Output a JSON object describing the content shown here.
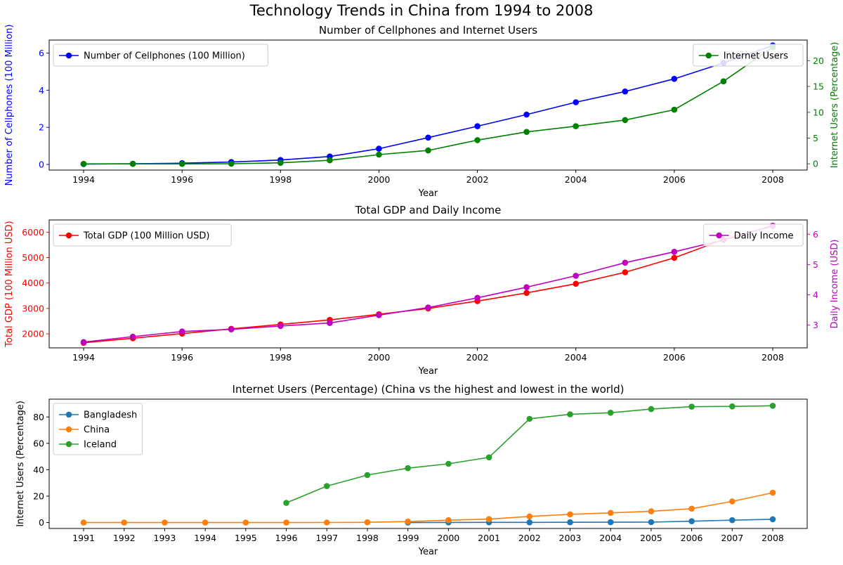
{
  "figure": {
    "title": "Technology Trends in China from 1994 to 2008"
  },
  "chart_data": [
    {
      "type": "line",
      "title": "Number of Cellphones and Internet Users",
      "xlabel": "Year",
      "ylabel_left": "Number of Cellphones (100 Million)",
      "ylabel_right": "Internet Users (Percentage)",
      "x": [
        1994,
        1995,
        1996,
        1997,
        1998,
        1999,
        2000,
        2001,
        2002,
        2003,
        2004,
        2005,
        2006,
        2007,
        2008
      ],
      "xticks": [
        "1994",
        "1996",
        "1998",
        "2000",
        "2002",
        "2004",
        "2006",
        "2008"
      ],
      "xlim": [
        1993.3,
        2008.7
      ],
      "left_ticks": [
        "0",
        "2",
        "4",
        "6"
      ],
      "ylim_left": [
        -0.3,
        6.7
      ],
      "right_ticks": [
        "0",
        "5",
        "10",
        "15",
        "20"
      ],
      "ylim_right": [
        -1.2,
        24.0
      ],
      "grid": false,
      "series": [
        {
          "name": "Number of Cellphones (100 Million)",
          "axis": "left",
          "color": "#0000ff",
          "values": [
            0.02,
            0.04,
            0.07,
            0.13,
            0.24,
            0.43,
            0.85,
            1.45,
            2.06,
            2.69,
            3.35,
            3.93,
            4.61,
            5.47,
            6.41
          ],
          "legend_pos": "upper left"
        },
        {
          "name": "Internet Users",
          "axis": "right",
          "color": "#008000",
          "values": [
            0.0,
            0.0,
            0.0,
            0.03,
            0.2,
            0.7,
            1.8,
            2.6,
            4.6,
            6.2,
            7.3,
            8.5,
            10.5,
            16.0,
            22.6
          ],
          "legend_pos": "upper right"
        }
      ]
    },
    {
      "type": "line",
      "title": "Total GDP and Daily Income",
      "xlabel": "Year",
      "ylabel_left": "Total GDP (100 Million USD)",
      "ylabel_right": "Daily Income (USD)",
      "x": [
        1994,
        1995,
        1996,
        1997,
        1998,
        1999,
        2000,
        2001,
        2002,
        2003,
        2004,
        2005,
        2006,
        2007,
        2008
      ],
      "xticks": [
        "1994",
        "1996",
        "1998",
        "2000",
        "2002",
        "2004",
        "2006",
        "2008"
      ],
      "xlim": [
        1993.3,
        2008.7
      ],
      "left_ticks": [
        "2000",
        "3000",
        "4000",
        "5000",
        "6000"
      ],
      "ylim_left": [
        1450,
        6480
      ],
      "right_ticks": [
        "3",
        "4",
        "5",
        "6"
      ],
      "ylim_right": [
        2.25,
        6.47
      ],
      "grid": false,
      "series": [
        {
          "name": "Total GDP (100 Million USD)",
          "axis": "left",
          "color": "#ff0000",
          "values": [
            1650,
            1830,
            2010,
            2200,
            2370,
            2550,
            2770,
            3000,
            3290,
            3610,
            3970,
            4420,
            4990,
            5710,
            6240
          ],
          "legend_pos": "upper left"
        },
        {
          "name": "Daily Income",
          "axis": "right",
          "color": "#bf00bf",
          "values": [
            2.44,
            2.62,
            2.79,
            2.86,
            2.97,
            3.07,
            3.33,
            3.58,
            3.9,
            4.25,
            4.63,
            5.06,
            5.42,
            5.81,
            6.28
          ],
          "legend_pos": "upper right"
        }
      ]
    },
    {
      "type": "line",
      "title": "Internet Users (Percentage) (China vs the highest and lowest in the world)",
      "xlabel": "Year",
      "ylabel_left": "Internet Users (Percentage)",
      "x": [
        1991,
        1992,
        1993,
        1994,
        1995,
        1996,
        1997,
        1998,
        1999,
        2000,
        2001,
        2002,
        2003,
        2004,
        2005,
        2006,
        2007,
        2008
      ],
      "xticks": [
        "1991",
        "1992",
        "1993",
        "1994",
        "1995",
        "1996",
        "1997",
        "1998",
        "1999",
        "2000",
        "2001",
        "2002",
        "2003",
        "2004",
        "2005",
        "2006",
        "2007",
        "2008"
      ],
      "xlim": [
        1990.15,
        2008.85
      ],
      "left_ticks": [
        "0",
        "20",
        "40",
        "60",
        "80"
      ],
      "ylim_left": [
        -4.5,
        93.5
      ],
      "grid": false,
      "series": [
        {
          "name": "Bangladesh",
          "axis": "left",
          "color": "#1f77b4",
          "x": [
            1999,
            2000,
            2001,
            2002,
            2003,
            2004,
            2005,
            2006,
            2007,
            2008
          ],
          "values": [
            0.0,
            0.1,
            0.15,
            0.15,
            0.2,
            0.25,
            0.3,
            1.0,
            1.8,
            2.5
          ]
        },
        {
          "name": "China",
          "axis": "left",
          "color": "#ff7f0e",
          "x": [
            1991,
            1992,
            1993,
            1994,
            1995,
            1996,
            1997,
            1998,
            1999,
            2000,
            2001,
            2002,
            2003,
            2004,
            2005,
            2006,
            2007,
            2008
          ],
          "values": [
            0.0,
            0.0,
            0.0,
            0.0,
            0.0,
            0.0,
            0.03,
            0.2,
            0.7,
            1.8,
            2.6,
            4.6,
            6.2,
            7.3,
            8.5,
            10.5,
            16.0,
            22.6
          ]
        },
        {
          "name": "Iceland",
          "axis": "left",
          "color": "#2ca02c",
          "x": [
            1996,
            1997,
            1998,
            1999,
            2000,
            2001,
            2002,
            2003,
            2004,
            2005,
            2006,
            2007,
            2008
          ],
          "values": [
            14.9,
            27.6,
            36.0,
            41.2,
            44.5,
            49.4,
            78.6,
            82.0,
            83.2,
            86.0,
            87.8,
            88.0,
            88.5
          ]
        }
      ],
      "legend_pos": "upper left"
    }
  ]
}
